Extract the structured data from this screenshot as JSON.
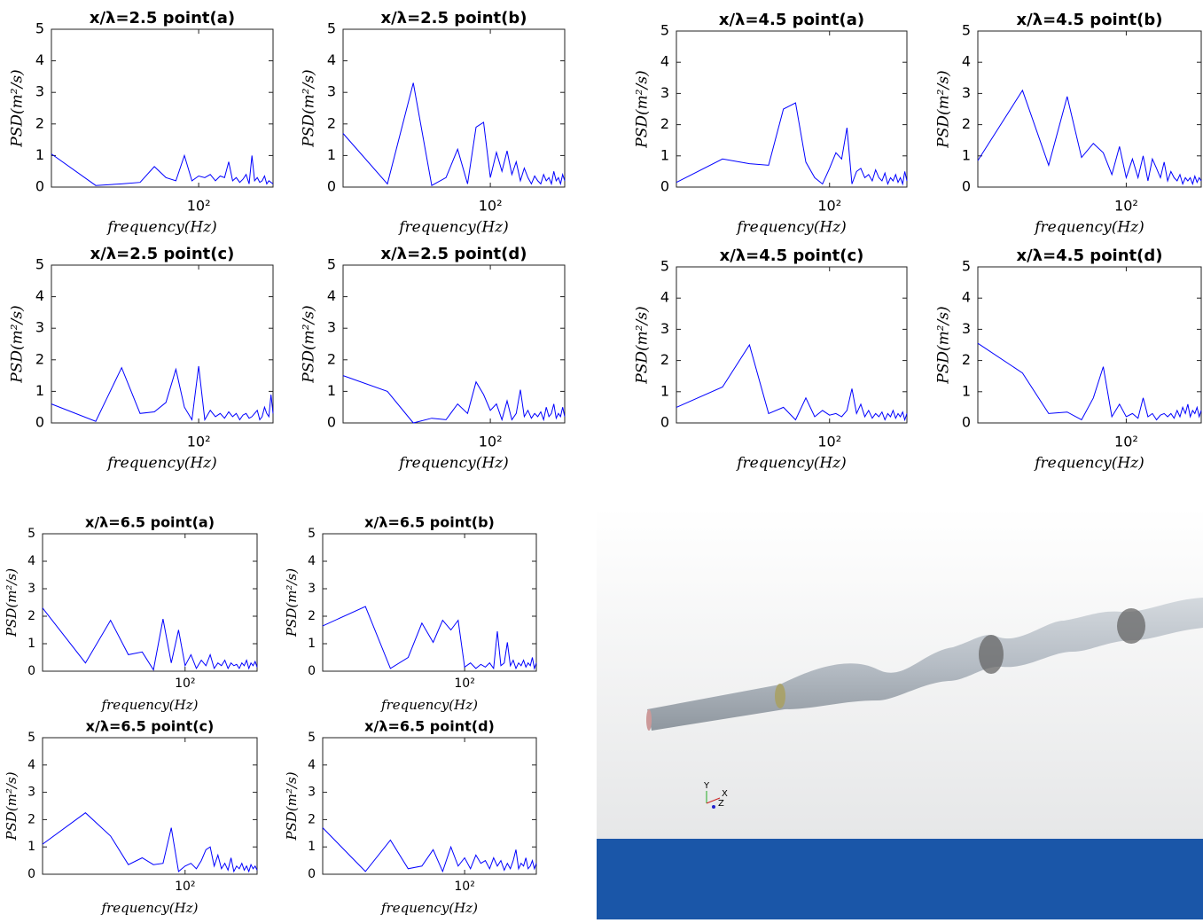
{
  "chart_data": [
    {
      "type": "line",
      "title": "x/λ=2.5 point(a)",
      "x_label": "frequency(Hz)",
      "y_label": "PSD(m²/s)",
      "xscale": "log",
      "grid": false,
      "color": "#0000ff",
      "xlim": [
        10,
        320
      ],
      "ylim": [
        0,
        5
      ],
      "yticks": [
        0,
        1,
        2,
        3,
        4,
        5
      ],
      "xticks": [
        {
          "value": 100,
          "label": "10²"
        }
      ],
      "x": [
        10,
        20,
        30,
        40,
        50,
        60,
        70,
        80,
        90,
        100,
        110,
        120,
        130,
        140,
        150,
        160,
        170,
        180,
        190,
        200,
        210,
        220,
        230,
        240,
        250,
        260,
        270,
        280,
        290,
        300,
        310,
        320
      ],
      "values": [
        1.05,
        0.05,
        0.1,
        0.15,
        0.65,
        0.3,
        0.2,
        1.0,
        0.2,
        0.35,
        0.3,
        0.4,
        0.2,
        0.35,
        0.3,
        0.8,
        0.2,
        0.3,
        0.15,
        0.25,
        0.4,
        0.1,
        1.0,
        0.2,
        0.3,
        0.15,
        0.2,
        0.35,
        0.1,
        0.2,
        0.15,
        0.1
      ]
    },
    {
      "type": "line",
      "title": "x/λ=2.5 point(b)",
      "x_label": "frequency(Hz)",
      "y_label": "PSD(m²/s)",
      "xscale": "log",
      "grid": false,
      "color": "#0000ff",
      "xlim": [
        10,
        320
      ],
      "ylim": [
        0,
        5
      ],
      "yticks": [
        0,
        1,
        2,
        3,
        4,
        5
      ],
      "xticks": [
        {
          "value": 100,
          "label": "10²"
        }
      ],
      "x": [
        10,
        20,
        30,
        40,
        50,
        60,
        70,
        80,
        90,
        100,
        110,
        120,
        130,
        140,
        150,
        160,
        170,
        180,
        190,
        200,
        210,
        220,
        230,
        240,
        250,
        260,
        270,
        280,
        290,
        300,
        310,
        320
      ],
      "values": [
        1.7,
        0.1,
        3.3,
        0.05,
        0.3,
        1.2,
        0.1,
        1.9,
        2.05,
        0.3,
        1.1,
        0.5,
        1.15,
        0.4,
        0.8,
        0.2,
        0.6,
        0.3,
        0.1,
        0.35,
        0.2,
        0.1,
        0.4,
        0.2,
        0.3,
        0.1,
        0.5,
        0.2,
        0.3,
        0.1,
        0.4,
        0.2
      ]
    },
    {
      "type": "line",
      "title": "x/λ=4.5 point(a)",
      "x_label": "frequency(Hz)",
      "y_label": "PSD(m²/s)",
      "xscale": "log",
      "grid": false,
      "color": "#0000ff",
      "xlim": [
        10,
        320
      ],
      "ylim": [
        0,
        5
      ],
      "yticks": [
        0,
        1,
        2,
        3,
        4,
        5
      ],
      "xticks": [
        {
          "value": 100,
          "label": "10²"
        }
      ],
      "x": [
        10,
        20,
        30,
        40,
        50,
        60,
        70,
        80,
        90,
        100,
        110,
        120,
        130,
        140,
        150,
        160,
        170,
        180,
        190,
        200,
        210,
        220,
        230,
        240,
        250,
        260,
        270,
        280,
        290,
        300,
        310,
        320
      ],
      "values": [
        0.15,
        0.9,
        0.75,
        0.7,
        2.5,
        2.7,
        0.8,
        0.3,
        0.1,
        0.6,
        1.1,
        0.9,
        1.9,
        0.1,
        0.5,
        0.6,
        0.3,
        0.4,
        0.2,
        0.55,
        0.3,
        0.2,
        0.45,
        0.1,
        0.3,
        0.2,
        0.4,
        0.15,
        0.3,
        0.1,
        0.5,
        0.2
      ]
    },
    {
      "type": "line",
      "title": "x/λ=4.5 point(b)",
      "x_label": "frequency(Hz)",
      "y_label": "PSD(m²/s)",
      "xscale": "log",
      "grid": false,
      "color": "#0000ff",
      "xlim": [
        10,
        320
      ],
      "ylim": [
        0,
        5
      ],
      "yticks": [
        0,
        1,
        2,
        3,
        4,
        5
      ],
      "xticks": [
        {
          "value": 100,
          "label": "10²"
        }
      ],
      "x": [
        10,
        20,
        30,
        40,
        50,
        60,
        70,
        80,
        90,
        100,
        110,
        120,
        130,
        140,
        150,
        160,
        170,
        180,
        190,
        200,
        210,
        220,
        230,
        240,
        250,
        260,
        270,
        280,
        290,
        300,
        310,
        320
      ],
      "values": [
        0.85,
        3.1,
        0.7,
        2.9,
        0.95,
        1.4,
        1.1,
        0.4,
        1.3,
        0.3,
        0.9,
        0.3,
        1.0,
        0.2,
        0.9,
        0.6,
        0.3,
        0.8,
        0.2,
        0.5,
        0.3,
        0.2,
        0.4,
        0.1,
        0.3,
        0.2,
        0.3,
        0.1,
        0.35,
        0.15,
        0.3,
        0.2
      ]
    },
    {
      "type": "line",
      "title": "x/λ=2.5 point(c)",
      "x_label": "frequency(Hz)",
      "y_label": "PSD(m²/s)",
      "xscale": "log",
      "grid": false,
      "color": "#0000ff",
      "xlim": [
        10,
        320
      ],
      "ylim": [
        0,
        5
      ],
      "yticks": [
        0,
        1,
        2,
        3,
        4,
        5
      ],
      "xticks": [
        {
          "value": 100,
          "label": "10²"
        }
      ],
      "x": [
        10,
        20,
        30,
        40,
        50,
        60,
        70,
        80,
        90,
        100,
        110,
        120,
        130,
        140,
        150,
        160,
        170,
        180,
        190,
        200,
        210,
        220,
        230,
        240,
        250,
        260,
        270,
        280,
        290,
        300,
        310,
        320
      ],
      "values": [
        0.6,
        0.05,
        1.75,
        0.3,
        0.35,
        0.65,
        1.7,
        0.5,
        0.1,
        1.8,
        0.1,
        0.4,
        0.2,
        0.3,
        0.15,
        0.35,
        0.2,
        0.3,
        0.1,
        0.25,
        0.3,
        0.15,
        0.2,
        0.3,
        0.4,
        0.1,
        0.2,
        0.5,
        0.3,
        0.2,
        0.9,
        0.3
      ]
    },
    {
      "type": "line",
      "title": "x/λ=2.5 point(d)",
      "x_label": "frequency(Hz)",
      "y_label": "PSD(m²/s)",
      "xscale": "log",
      "grid": false,
      "color": "#0000ff",
      "xlim": [
        10,
        320
      ],
      "ylim": [
        0,
        5
      ],
      "yticks": [
        0,
        1,
        2,
        3,
        4,
        5
      ],
      "xticks": [
        {
          "value": 100,
          "label": "10²"
        }
      ],
      "x": [
        10,
        20,
        30,
        40,
        50,
        60,
        70,
        80,
        90,
        100,
        110,
        120,
        130,
        140,
        150,
        160,
        170,
        180,
        190,
        200,
        210,
        220,
        230,
        240,
        250,
        260,
        270,
        280,
        290,
        300,
        310,
        320
      ],
      "values": [
        1.5,
        1.0,
        0.0,
        0.15,
        0.1,
        0.6,
        0.3,
        1.3,
        0.9,
        0.4,
        0.6,
        0.1,
        0.7,
        0.1,
        0.3,
        1.05,
        0.2,
        0.4,
        0.15,
        0.3,
        0.2,
        0.35,
        0.1,
        0.5,
        0.2,
        0.3,
        0.6,
        0.15,
        0.3,
        0.2,
        0.5,
        0.2
      ]
    },
    {
      "type": "line",
      "title": "x/λ=4.5 point(c)",
      "x_label": "frequency(Hz)",
      "y_label": "PSD(m²/s)",
      "xscale": "log",
      "grid": false,
      "color": "#0000ff",
      "xlim": [
        10,
        320
      ],
      "ylim": [
        0,
        5
      ],
      "yticks": [
        0,
        1,
        2,
        3,
        4,
        5
      ],
      "xticks": [
        {
          "value": 100,
          "label": "10²"
        }
      ],
      "x": [
        10,
        20,
        30,
        40,
        50,
        60,
        70,
        80,
        90,
        100,
        110,
        120,
        130,
        140,
        150,
        160,
        170,
        180,
        190,
        200,
        210,
        220,
        230,
        240,
        250,
        260,
        270,
        280,
        290,
        300,
        310,
        320
      ],
      "values": [
        0.5,
        1.15,
        2.5,
        0.3,
        0.5,
        0.1,
        0.8,
        0.2,
        0.4,
        0.25,
        0.3,
        0.2,
        0.4,
        1.1,
        0.3,
        0.6,
        0.2,
        0.4,
        0.15,
        0.3,
        0.2,
        0.35,
        0.1,
        0.3,
        0.2,
        0.4,
        0.15,
        0.3,
        0.2,
        0.35,
        0.1,
        0.3
      ]
    },
    {
      "type": "line",
      "title": "x/λ=4.5 point(d)",
      "x_label": "frequency(Hz)",
      "y_label": "PSD(m²/s)",
      "xscale": "log",
      "grid": false,
      "color": "#0000ff",
      "xlim": [
        10,
        320
      ],
      "ylim": [
        0,
        5
      ],
      "yticks": [
        0,
        1,
        2,
        3,
        4,
        5
      ],
      "xticks": [
        {
          "value": 100,
          "label": "10²"
        }
      ],
      "x": [
        10,
        20,
        30,
        40,
        50,
        60,
        70,
        80,
        90,
        100,
        110,
        120,
        130,
        140,
        150,
        160,
        170,
        180,
        190,
        200,
        210,
        220,
        230,
        240,
        250,
        260,
        270,
        280,
        290,
        300,
        310,
        320
      ],
      "values": [
        2.55,
        1.6,
        0.3,
        0.35,
        0.1,
        0.8,
        1.8,
        0.2,
        0.6,
        0.2,
        0.3,
        0.15,
        0.8,
        0.2,
        0.3,
        0.1,
        0.25,
        0.3,
        0.2,
        0.3,
        0.15,
        0.4,
        0.2,
        0.5,
        0.3,
        0.6,
        0.2,
        0.4,
        0.3,
        0.5,
        0.2,
        0.4
      ]
    },
    {
      "type": "line",
      "title": "x/λ=6.5 point(a)",
      "x_label": "frequency(Hz)",
      "y_label": "PSD(m²/s)",
      "xscale": "log",
      "grid": false,
      "color": "#0000ff",
      "xlim": [
        10,
        320
      ],
      "ylim": [
        0,
        5
      ],
      "yticks": [
        0,
        1,
        2,
        3,
        4,
        5
      ],
      "xticks": [
        {
          "value": 100,
          "label": "10²"
        }
      ],
      "x": [
        10,
        20,
        30,
        40,
        50,
        60,
        70,
        80,
        90,
        100,
        110,
        120,
        130,
        140,
        150,
        160,
        170,
        180,
        190,
        200,
        210,
        220,
        230,
        240,
        250,
        260,
        270,
        280,
        290,
        300,
        310,
        320
      ],
      "values": [
        2.3,
        0.3,
        1.85,
        0.6,
        0.7,
        0.05,
        1.9,
        0.3,
        1.5,
        0.2,
        0.6,
        0.1,
        0.4,
        0.2,
        0.6,
        0.1,
        0.3,
        0.2,
        0.4,
        0.1,
        0.3,
        0.2,
        0.25,
        0.1,
        0.3,
        0.2,
        0.4,
        0.1,
        0.3,
        0.2,
        0.35,
        0.15
      ]
    },
    {
      "type": "line",
      "title": "x/λ=6.5 point(b)",
      "x_label": "frequency(Hz)",
      "y_label": "PSD(m²/s)",
      "xscale": "log",
      "grid": false,
      "color": "#0000ff",
      "xlim": [
        10,
        320
      ],
      "ylim": [
        0,
        5
      ],
      "yticks": [
        0,
        1,
        2,
        3,
        4,
        5
      ],
      "xticks": [
        {
          "value": 100,
          "label": "10²"
        }
      ],
      "x": [
        10,
        20,
        30,
        40,
        50,
        60,
        70,
        80,
        90,
        100,
        110,
        120,
        130,
        140,
        150,
        160,
        170,
        180,
        190,
        200,
        210,
        220,
        230,
        240,
        250,
        260,
        270,
        280,
        290,
        300,
        310,
        320
      ],
      "values": [
        1.65,
        2.35,
        0.1,
        0.5,
        1.75,
        1.05,
        1.85,
        1.5,
        1.85,
        0.15,
        0.3,
        0.1,
        0.25,
        0.15,
        0.3,
        0.1,
        1.45,
        0.2,
        0.3,
        1.05,
        0.2,
        0.4,
        0.1,
        0.3,
        0.2,
        0.4,
        0.15,
        0.3,
        0.2,
        0.5,
        0.1,
        0.3
      ]
    },
    {
      "type": "line",
      "title": "x/λ=6.5 point(c)",
      "x_label": "frequency(Hz)",
      "y_label": "PSD(m²/s)",
      "xscale": "log",
      "grid": false,
      "color": "#0000ff",
      "xlim": [
        10,
        320
      ],
      "ylim": [
        0,
        5
      ],
      "yticks": [
        0,
        1,
        2,
        3,
        4,
        5
      ],
      "xticks": [
        {
          "value": 100,
          "label": "10²"
        }
      ],
      "x": [
        10,
        20,
        30,
        40,
        50,
        60,
        70,
        80,
        90,
        100,
        110,
        120,
        130,
        140,
        150,
        160,
        170,
        180,
        190,
        200,
        210,
        220,
        230,
        240,
        250,
        260,
        270,
        280,
        290,
        300,
        310,
        320
      ],
      "values": [
        1.1,
        2.25,
        1.4,
        0.35,
        0.6,
        0.35,
        0.4,
        1.7,
        0.1,
        0.3,
        0.4,
        0.2,
        0.5,
        0.9,
        1.0,
        0.3,
        0.7,
        0.2,
        0.4,
        0.15,
        0.6,
        0.1,
        0.3,
        0.2,
        0.4,
        0.15,
        0.3,
        0.1,
        0.35,
        0.2,
        0.3,
        0.15
      ]
    },
    {
      "type": "line",
      "title": "x/λ=6.5 point(d)",
      "x_label": "frequency(Hz)",
      "y_label": "PSD(m²/s)",
      "xscale": "log",
      "grid": false,
      "color": "#0000ff",
      "xlim": [
        10,
        320
      ],
      "ylim": [
        0,
        5
      ],
      "yticks": [
        0,
        1,
        2,
        3,
        4,
        5
      ],
      "xticks": [
        {
          "value": 100,
          "label": "10²"
        }
      ],
      "x": [
        10,
        20,
        30,
        40,
        50,
        60,
        70,
        80,
        90,
        100,
        110,
        120,
        130,
        140,
        150,
        160,
        170,
        180,
        190,
        200,
        210,
        220,
        230,
        240,
        250,
        260,
        270,
        280,
        290,
        300,
        310,
        320
      ],
      "values": [
        1.7,
        0.1,
        1.25,
        0.2,
        0.3,
        0.9,
        0.1,
        1.0,
        0.3,
        0.6,
        0.2,
        0.7,
        0.4,
        0.5,
        0.2,
        0.6,
        0.3,
        0.5,
        0.15,
        0.4,
        0.2,
        0.5,
        0.9,
        0.2,
        0.4,
        0.3,
        0.6,
        0.2,
        0.3,
        0.5,
        0.2,
        0.4
      ]
    }
  ],
  "render": {
    "axis_labels": [
      "Y",
      "Z",
      "X"
    ]
  }
}
